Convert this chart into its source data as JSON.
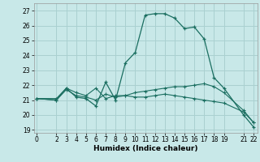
{
  "xlabel": "Humidex (Indice chaleur)",
  "bg_color": "#c8e8e8",
  "grid_color": "#aad0d0",
  "line_color": "#1a6e60",
  "x_ticks": [
    0,
    2,
    3,
    4,
    5,
    6,
    7,
    8,
    9,
    10,
    11,
    12,
    13,
    14,
    15,
    16,
    17,
    18,
    19,
    21,
    22
  ],
  "ylim": [
    18.8,
    27.5
  ],
  "xlim": [
    -0.3,
    22.4
  ],
  "yticks": [
    19,
    20,
    21,
    22,
    23,
    24,
    25,
    26,
    27
  ],
  "series1_x": [
    0,
    2,
    3,
    4,
    5,
    6,
    7,
    8,
    9,
    10,
    11,
    12,
    13,
    14,
    15,
    16,
    17,
    18,
    19,
    21,
    22
  ],
  "series1_y": [
    21.1,
    21.1,
    21.8,
    21.2,
    21.1,
    20.6,
    22.2,
    21.0,
    23.5,
    24.2,
    26.7,
    26.8,
    26.8,
    26.5,
    25.8,
    25.9,
    25.1,
    22.5,
    21.8,
    20.0,
    19.2
  ],
  "series2_x": [
    0,
    2,
    3,
    4,
    5,
    6,
    7,
    8,
    9,
    10,
    11,
    12,
    13,
    14,
    15,
    16,
    17,
    18,
    19,
    21,
    22
  ],
  "series2_y": [
    21.1,
    21.0,
    21.8,
    21.5,
    21.3,
    21.8,
    21.1,
    21.3,
    21.3,
    21.5,
    21.6,
    21.7,
    21.8,
    21.9,
    21.9,
    22.0,
    22.1,
    21.9,
    21.5,
    20.3,
    19.5
  ],
  "series3_x": [
    0,
    2,
    3,
    4,
    5,
    6,
    7,
    8,
    9,
    10,
    11,
    12,
    13,
    14,
    15,
    16,
    17,
    18,
    19,
    21,
    22
  ],
  "series3_y": [
    21.1,
    21.0,
    21.7,
    21.3,
    21.2,
    21.0,
    21.4,
    21.2,
    21.3,
    21.2,
    21.2,
    21.3,
    21.4,
    21.3,
    21.2,
    21.1,
    21.0,
    20.9,
    20.8,
    20.2,
    19.5
  ]
}
